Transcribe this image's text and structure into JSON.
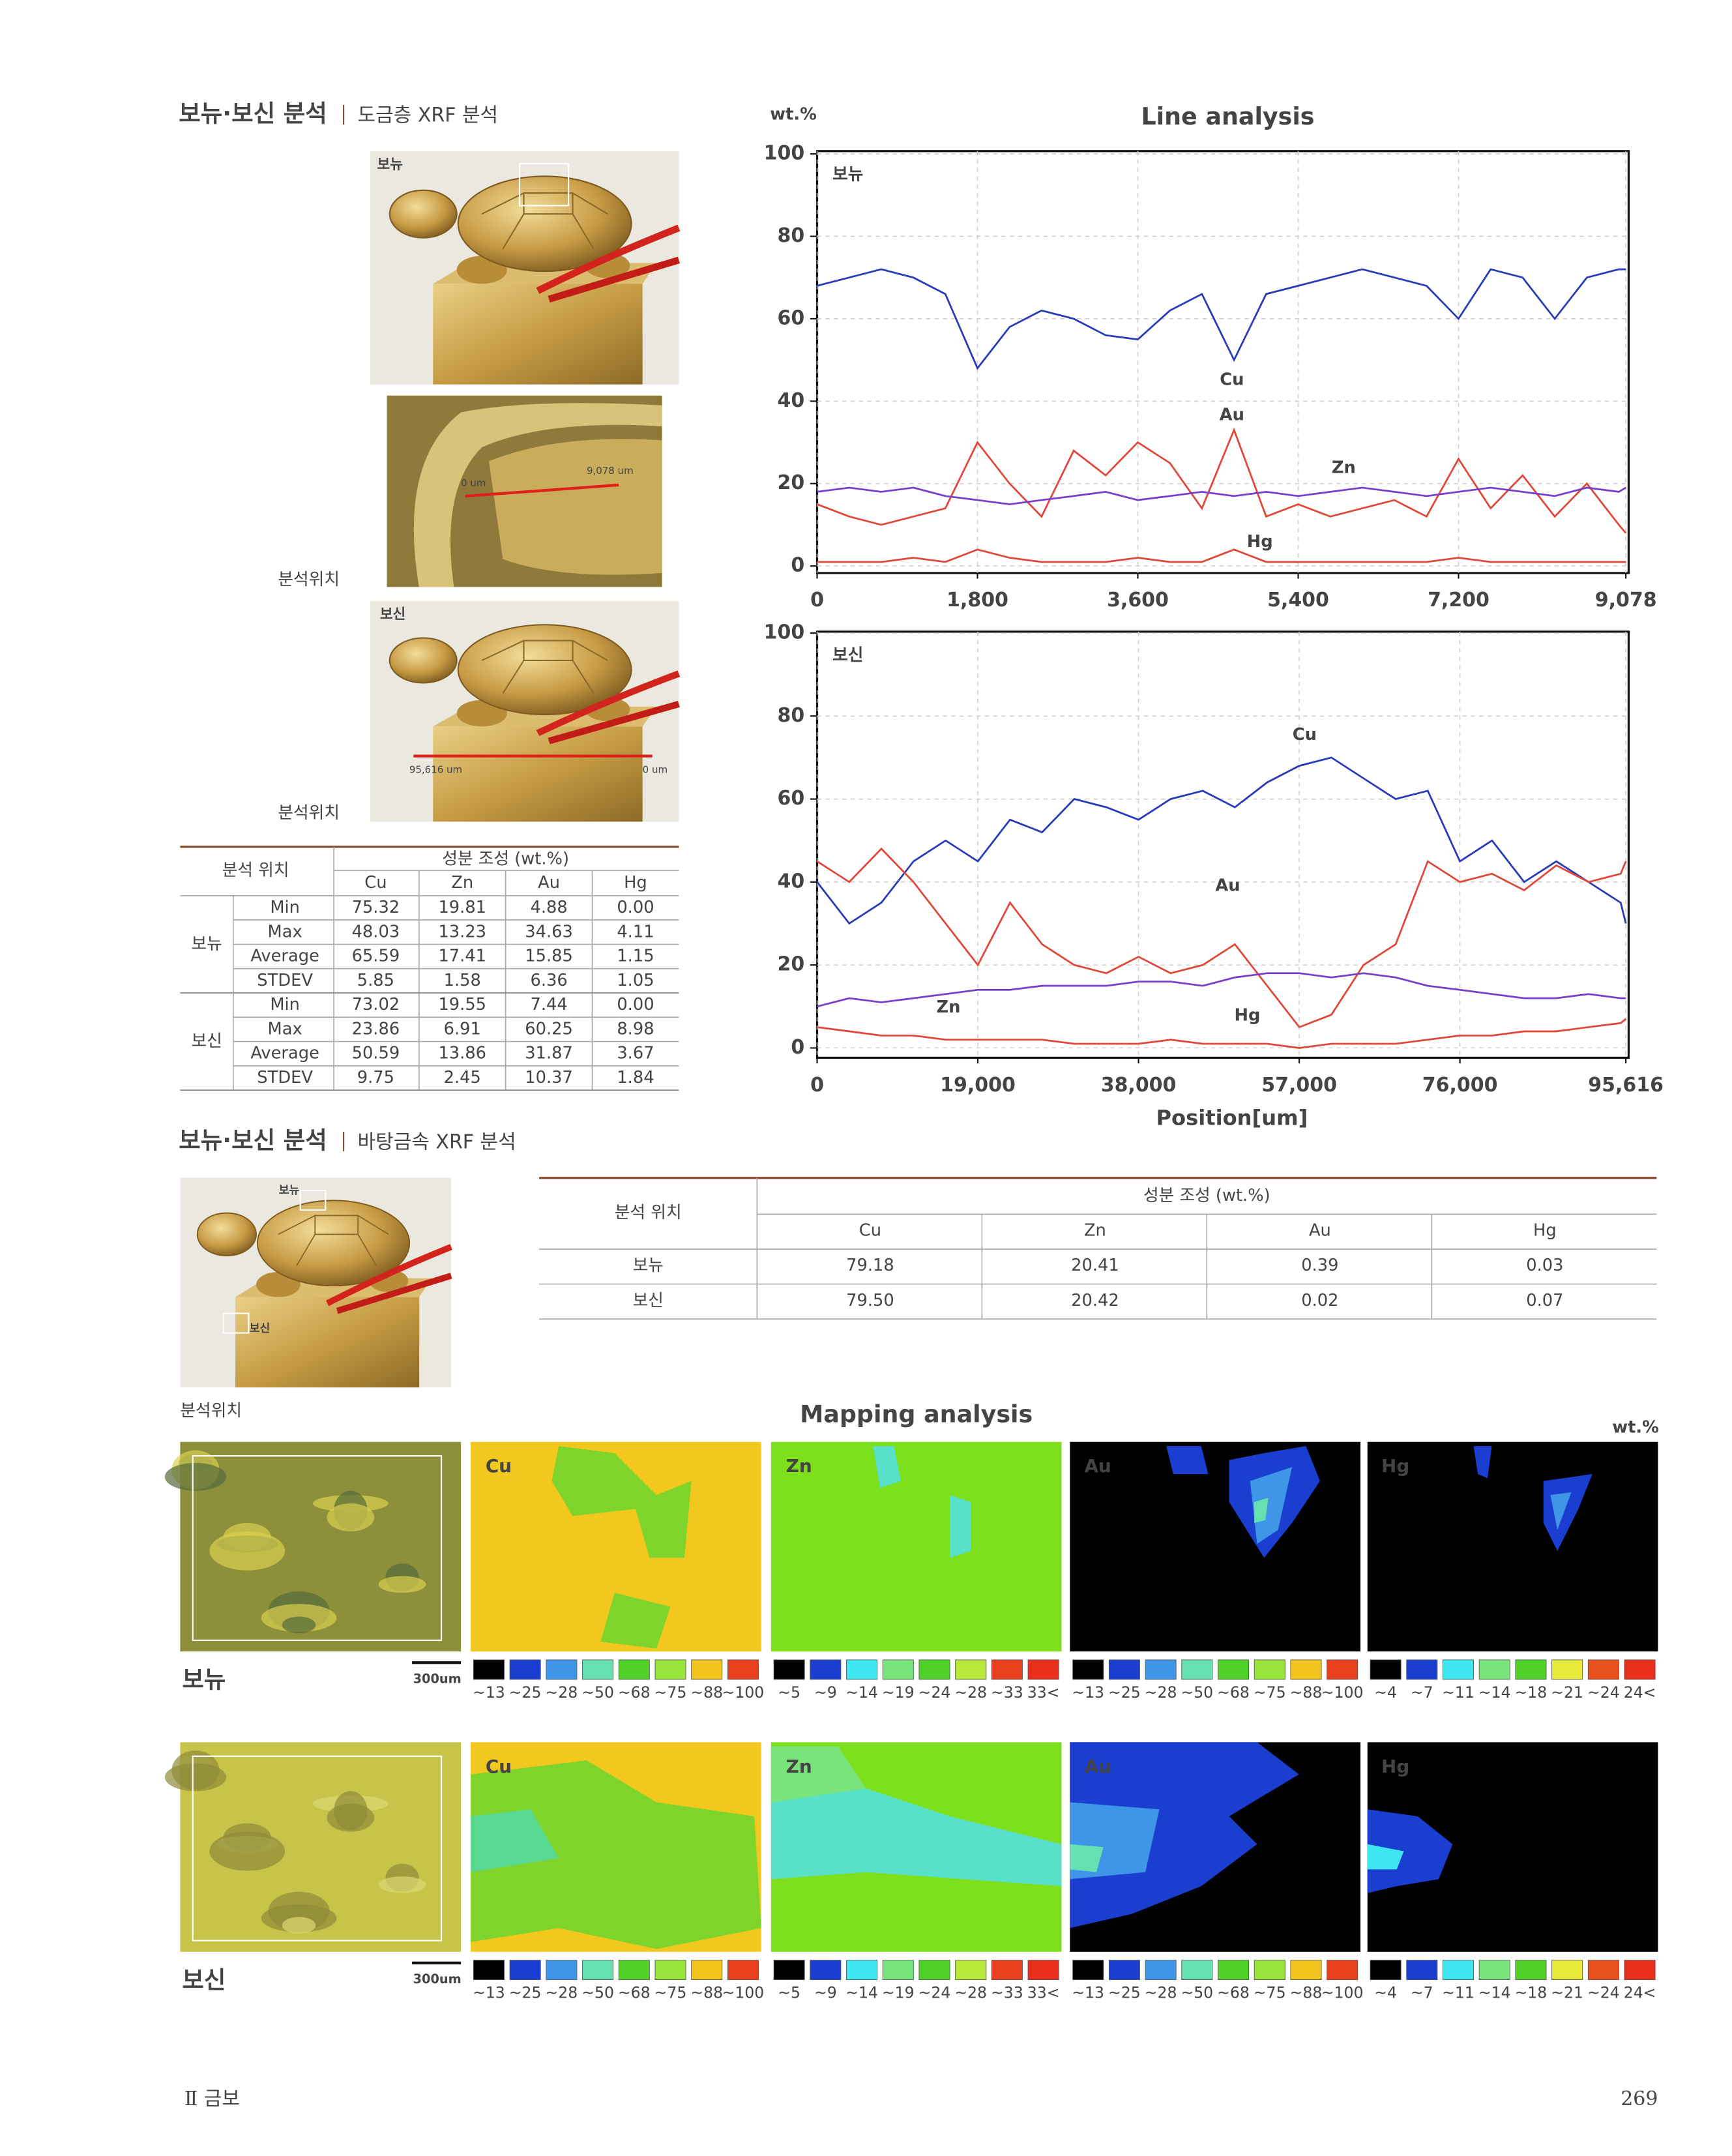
{
  "section1": {
    "title": "보뉴·보신 분석",
    "subtitle": "도금층 XRF 분석",
    "photos": {
      "bonyu_label": "보뉴",
      "bosin_label": "보신",
      "closeup_start": "0 um",
      "closeup_end": "9,078 um",
      "bosin_start": "95,616 um",
      "bosin_end": "0 um",
      "caption1": "분석위치",
      "caption2": "분석위치"
    },
    "table": {
      "header_location": "분석 위치",
      "header_composition": "성분 조성 (wt.%)",
      "columns": [
        "Cu",
        "Zn",
        "Au",
        "Hg"
      ],
      "groups": [
        {
          "name": "보뉴",
          "rows": [
            {
              "stat": "Min",
              "values": [
                "75.32",
                "19.81",
                "4.88",
                "0.00"
              ]
            },
            {
              "stat": "Max",
              "values": [
                "48.03",
                "13.23",
                "34.63",
                "4.11"
              ]
            },
            {
              "stat": "Average",
              "values": [
                "65.59",
                "17.41",
                "15.85",
                "1.15"
              ]
            },
            {
              "stat": "STDEV",
              "values": [
                "5.85",
                "1.58",
                "6.36",
                "1.05"
              ]
            }
          ]
        },
        {
          "name": "보신",
          "rows": [
            {
              "stat": "Min",
              "values": [
                "73.02",
                "19.55",
                "7.44",
                "0.00"
              ]
            },
            {
              "stat": "Max",
              "values": [
                "23.86",
                "6.91",
                "60.25",
                "8.98"
              ]
            },
            {
              "stat": "Average",
              "values": [
                "50.59",
                "13.86",
                "31.87",
                "3.67"
              ]
            },
            {
              "stat": "STDEV",
              "values": [
                "9.75",
                "2.45",
                "10.37",
                "1.84"
              ]
            }
          ]
        }
      ]
    }
  },
  "line_analysis": {
    "title": "Line analysis",
    "unit": "wt.%",
    "x_label": "Position[um]"
  },
  "chart_data": [
    {
      "type": "line",
      "title": "보뉴",
      "grid": true,
      "xlim": [
        0,
        9078
      ],
      "ylim": [
        0,
        100
      ],
      "xticks": [
        0,
        {
          "value": 1800,
          "label": "1,800"
        },
        {
          "value": 3600,
          "label": "3,600"
        },
        {
          "value": 5400,
          "label": "5,400"
        },
        {
          "value": 7200,
          "label": "7,200"
        },
        {
          "value": 9078,
          "label": "9,078"
        }
      ],
      "yticks": [
        0,
        20,
        40,
        60,
        80,
        100
      ],
      "x": [
        0,
        360,
        720,
        1080,
        1440,
        1800,
        2160,
        2520,
        2880,
        3240,
        3600,
        3960,
        4320,
        4680,
        5040,
        5400,
        5760,
        6120,
        6480,
        6840,
        7200,
        7560,
        7920,
        8280,
        8640,
        9000,
        9078
      ],
      "series": [
        {
          "name": "Cu",
          "color": "#2a3bb8",
          "values": [
            68,
            70,
            72,
            70,
            66,
            48,
            58,
            62,
            60,
            56,
            55,
            62,
            66,
            50,
            66,
            68,
            70,
            72,
            70,
            68,
            60,
            72,
            70,
            60,
            70,
            72,
            72
          ]
        },
        {
          "name": "Au",
          "color": "#e0483a",
          "values": [
            15,
            12,
            10,
            12,
            14,
            30,
            20,
            12,
            28,
            22,
            30,
            25,
            14,
            33,
            12,
            15,
            12,
            14,
            16,
            12,
            26,
            14,
            22,
            12,
            20,
            10,
            8
          ]
        },
        {
          "name": "Zn",
          "color": "#7a3fc8",
          "values": [
            18,
            19,
            18,
            19,
            17,
            16,
            15,
            16,
            17,
            18,
            16,
            17,
            18,
            17,
            18,
            17,
            18,
            19,
            18,
            17,
            18,
            19,
            18,
            17,
            19,
            18,
            19
          ]
        },
        {
          "name": "Hg",
          "color": "#e0483a",
          "values": [
            1,
            1,
            1,
            2,
            1,
            4,
            2,
            1,
            1,
            1,
            2,
            1,
            1,
            4,
            1,
            1,
            1,
            1,
            1,
            1,
            2,
            1,
            1,
            1,
            1,
            1,
            1
          ]
        }
      ]
    },
    {
      "type": "line",
      "title": "보신",
      "grid": true,
      "xlim": [
        0,
        95616
      ],
      "ylim": [
        0,
        100
      ],
      "xticks": [
        0,
        {
          "value": 19000,
          "label": "19,000"
        },
        {
          "value": 38000,
          "label": "38,000"
        },
        {
          "value": 57000,
          "label": "57,000"
        },
        {
          "value": 76000,
          "label": "76,000"
        },
        {
          "value": 95616,
          "label": "95,616"
        }
      ],
      "yticks": [
        0,
        20,
        40,
        60,
        80,
        100
      ],
      "x": [
        0,
        3800,
        7600,
        11400,
        15200,
        19000,
        22800,
        26600,
        30400,
        34200,
        38000,
        41800,
        45600,
        49400,
        53200,
        57000,
        60800,
        64600,
        68400,
        72200,
        76000,
        79800,
        83600,
        87400,
        91200,
        95000,
        95616
      ],
      "series": [
        {
          "name": "Cu",
          "color": "#2a3bb8",
          "values": [
            40,
            30,
            35,
            45,
            50,
            45,
            55,
            52,
            60,
            58,
            55,
            60,
            62,
            58,
            64,
            68,
            70,
            65,
            60,
            62,
            45,
            50,
            40,
            45,
            40,
            35,
            30
          ]
        },
        {
          "name": "Au",
          "color": "#e0483a",
          "values": [
            45,
            40,
            48,
            40,
            30,
            20,
            35,
            25,
            20,
            18,
            22,
            18,
            20,
            25,
            15,
            5,
            8,
            20,
            25,
            45,
            40,
            42,
            38,
            44,
            40,
            42,
            45
          ]
        },
        {
          "name": "Zn",
          "color": "#7a3fc8",
          "values": [
            10,
            12,
            11,
            12,
            13,
            14,
            14,
            15,
            15,
            15,
            16,
            16,
            15,
            17,
            18,
            18,
            17,
            18,
            17,
            15,
            14,
            13,
            12,
            12,
            13,
            12,
            12
          ]
        },
        {
          "name": "Hg",
          "color": "#e0483a",
          "values": [
            5,
            4,
            3,
            3,
            2,
            2,
            2,
            2,
            1,
            1,
            1,
            2,
            1,
            1,
            1,
            0,
            1,
            1,
            1,
            2,
            3,
            3,
            4,
            4,
            5,
            6,
            7
          ]
        }
      ]
    }
  ],
  "section2": {
    "title": "보뉴·보신 분석",
    "subtitle": "바탕금속 XRF 분석",
    "photo": {
      "bonyu_label": "보뉴",
      "bosin_label": "보신",
      "caption": "분석위치"
    },
    "table": {
      "header_location": "분석 위치",
      "header_composition": "성분 조성 (wt.%)",
      "columns": [
        "Cu",
        "Zn",
        "Au",
        "Hg"
      ],
      "rows": [
        {
          "name": "보뉴",
          "values": [
            "79.18",
            "20.41",
            "0.39",
            "0.03"
          ]
        },
        {
          "name": "보신",
          "values": [
            "79.50",
            "20.42",
            "0.02",
            "0.07"
          ]
        }
      ]
    }
  },
  "mapping": {
    "title": "Mapping analysis",
    "unit": "wt.%",
    "scale_bar": "300um",
    "samples": [
      "보뉴",
      "보신"
    ],
    "elements": [
      {
        "name": "Cu",
        "legend_labels": [
          "~13",
          "~25",
          "~28",
          "~50",
          "~68",
          "~75",
          "~88",
          "~100"
        ],
        "legend_colors": [
          "#000000",
          "#1a3fd0",
          "#3f95e8",
          "#66e0b0",
          "#4fd12a",
          "#98e43a",
          "#f2c51e",
          "#e8401c"
        ]
      },
      {
        "name": "Zn",
        "legend_labels": [
          "~5",
          "~9",
          "~14",
          "~19",
          "~24",
          "~28",
          "~33",
          "33<"
        ],
        "legend_colors": [
          "#000000",
          "#1a3fd0",
          "#3ee6f0",
          "#78e47a",
          "#4fd12a",
          "#b8e83a",
          "#e8401c",
          "#e8301c"
        ]
      },
      {
        "name": "Au",
        "legend_labels": [
          "~13",
          "~25",
          "~28",
          "~50",
          "~68",
          "~75",
          "~88",
          "~100"
        ],
        "legend_colors": [
          "#000000",
          "#1a3fd0",
          "#3f95e8",
          "#66e0b0",
          "#4fd12a",
          "#98e43a",
          "#f2c51e",
          "#e8401c"
        ]
      },
      {
        "name": "Hg",
        "legend_labels": [
          "~4",
          "~7",
          "~11",
          "~14",
          "~18",
          "~21",
          "~24",
          "24<"
        ],
        "legend_colors": [
          "#000000",
          "#1a3fd0",
          "#3ee6f0",
          "#78e47a",
          "#4fd12a",
          "#e6e83a",
          "#e8501c",
          "#e8301c"
        ]
      }
    ]
  },
  "footer": {
    "section": "Ⅱ 금보",
    "page": "269"
  }
}
